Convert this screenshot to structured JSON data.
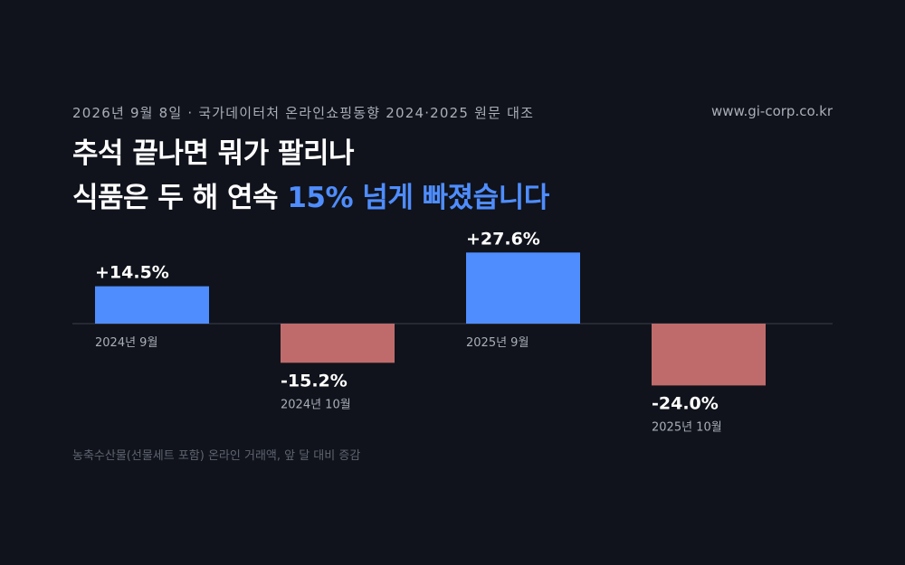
{
  "header": {
    "meta": "2026년 9월 8일 · 국가데이터처 온라인쇼핑동향 2024·2025 원문 대조",
    "site": "www.gi-corp.co.kr"
  },
  "headline": {
    "line1": "추석 끝나면 뭐가 팔리나",
    "line2_prefix": "식품은 두 해 연속 ",
    "line2_accent": "15% 넘게 빠졌습니다"
  },
  "footnote": "농축수산물(선물세트 포함) 온라인 거래액, 앞 달 대비 증감",
  "colors": {
    "positive": "#4f8dff",
    "negative": "#c06b6b",
    "accent": "#4f8dff",
    "baseline": "#2c313c"
  },
  "chart_data": {
    "type": "bar",
    "categories": [
      "2024년 9월",
      "2024년 10월",
      "2025년 9월",
      "2025년 10월"
    ],
    "values": [
      14.5,
      -15.2,
      27.6,
      -24.0
    ],
    "value_labels": [
      "+14.5%",
      "-15.2%",
      "+27.6%",
      "-24.0%"
    ],
    "xlabel": "",
    "ylabel": "",
    "grid": false,
    "legend": "none"
  }
}
